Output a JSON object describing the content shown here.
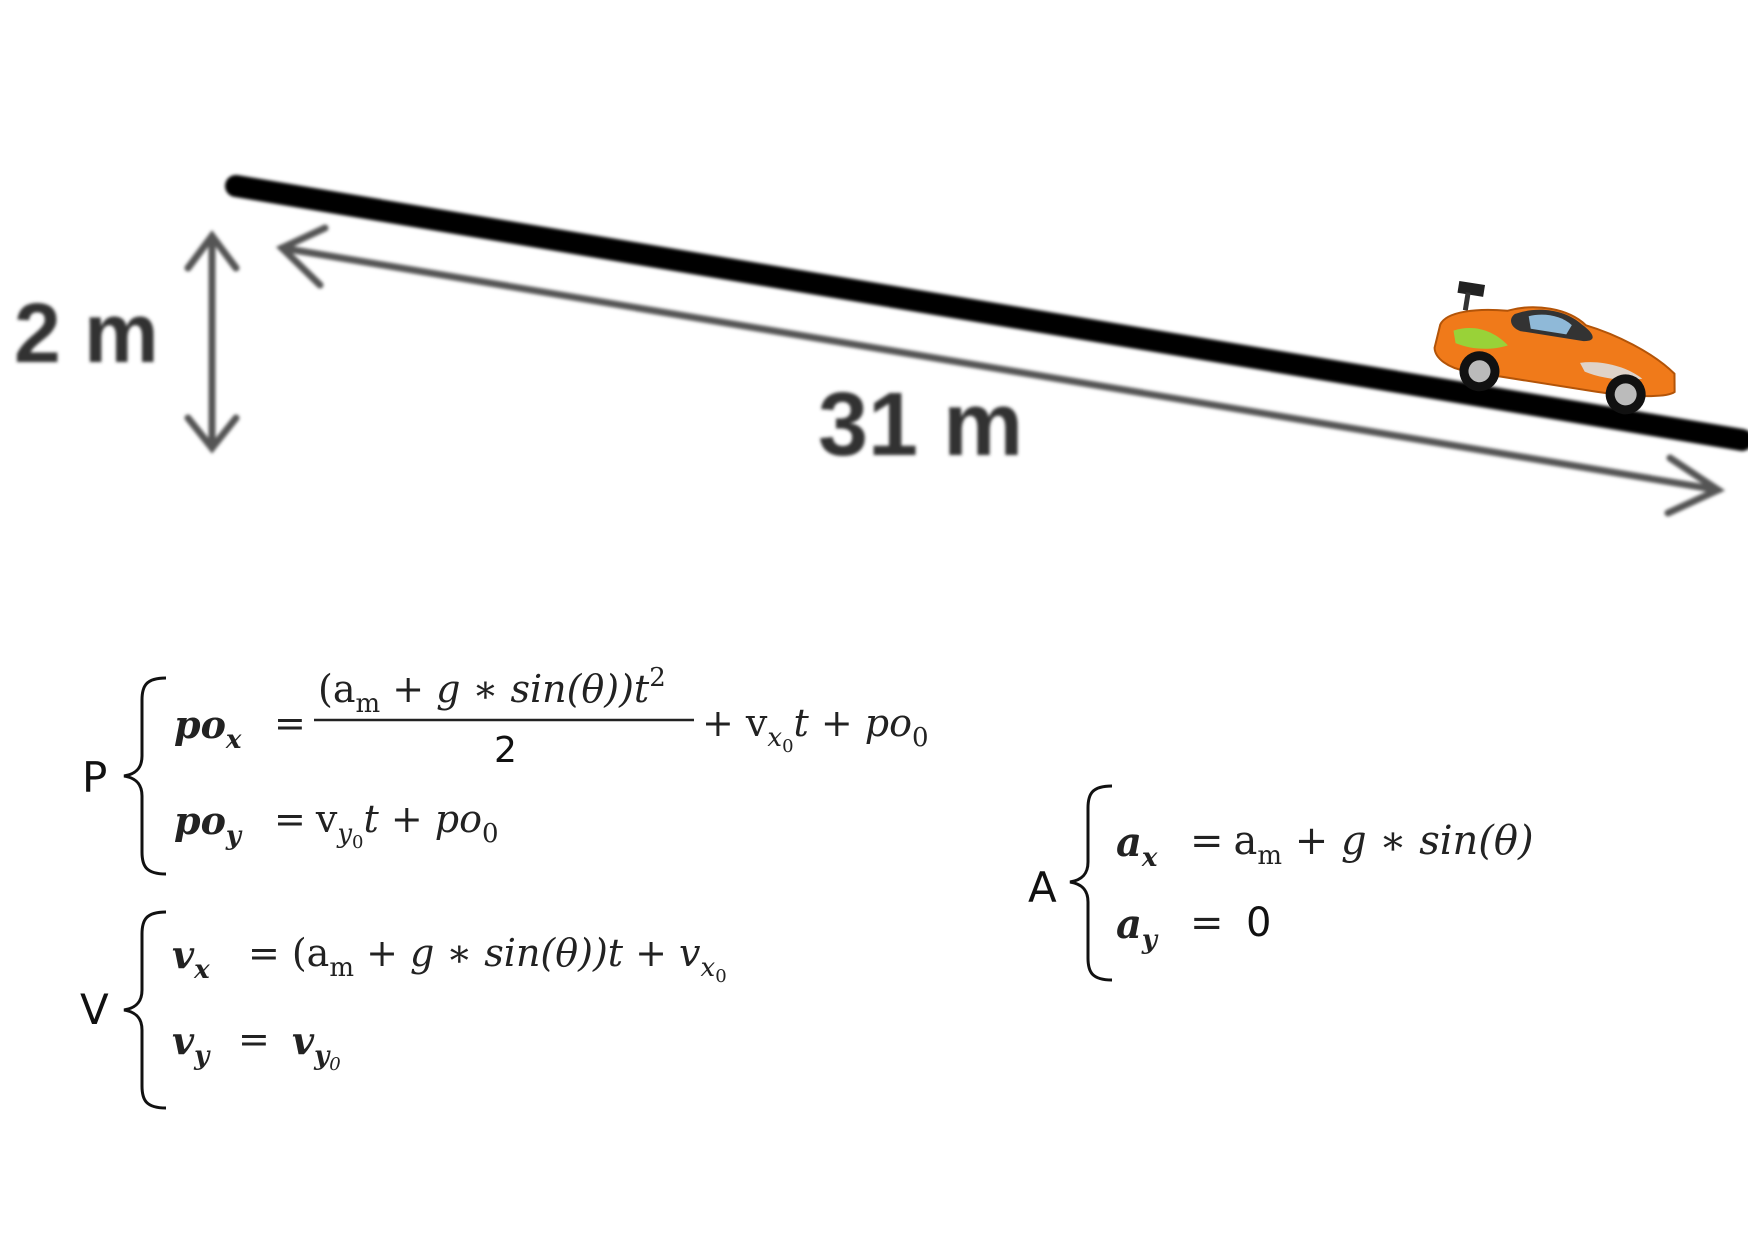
{
  "diagram": {
    "height_label": "2 m",
    "length_label": "31 m",
    "car_icon": "sports-car-icon",
    "colors": {
      "ramp": "#000000",
      "car_body": "#f07a1a",
      "car_decal": "#8fdc3c"
    }
  },
  "equations": {
    "position": {
      "group_label": "P",
      "x_lhs": "po",
      "x_lhs_sub": "x",
      "x_numerator": "(a",
      "x_numerator_sub": "m",
      "x_numerator_rest": " + g ∗ sin(θ))t",
      "x_numerator_sup": "2",
      "x_denominator": "2",
      "x_tail_plus": "+ v",
      "x_tail_sub": "x",
      "x_tail_subsub": "0",
      "x_tail_rest": "t + po",
      "x_tail_rest_sub": "0",
      "y_lhs": "po",
      "y_lhs_sub": "y",
      "y_rhs_v": "v",
      "y_rhs_sub": "y",
      "y_rhs_subsub": "0",
      "y_rhs_rest": "t + po",
      "y_rhs_rest_sub": "0",
      "equals": "="
    },
    "velocity": {
      "group_label": "V",
      "x_lhs": "v",
      "x_lhs_sub": "x",
      "x_rhs_a": "(a",
      "x_rhs_sub": "m",
      "x_rhs_rest": " + g ∗ sin(θ))t + v",
      "x_rhs_tail_sub": "x",
      "x_rhs_tail_subsub": "0",
      "y_lhs": "v",
      "y_lhs_sub": "y",
      "y_rhs": "v",
      "y_rhs_sub": "y",
      "y_rhs_subsub": "0",
      "equals": "="
    },
    "acceleration": {
      "group_label": "A",
      "x_lhs": "a",
      "x_lhs_sub": "x",
      "x_rhs_a": "a",
      "x_rhs_sub": "m",
      "x_rhs_rest": " + g ∗ sin(θ)",
      "y_lhs": "a",
      "y_lhs_sub": "y",
      "y_rhs": "0",
      "equals": "="
    }
  }
}
